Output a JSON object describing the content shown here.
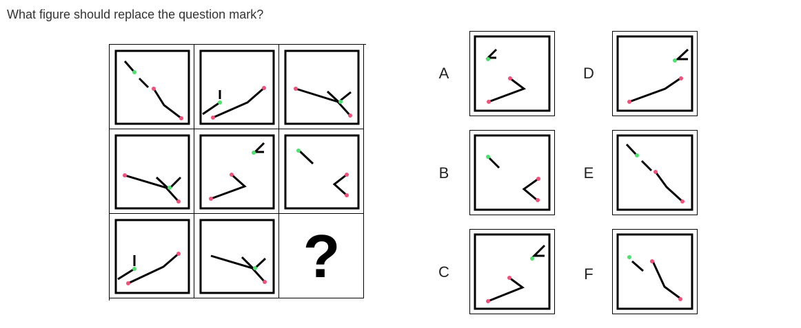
{
  "question": "What figure should replace the question mark?",
  "missing_symbol": "?",
  "colors": {
    "line": "#000000",
    "red_dot": "#f0507a",
    "green_dot": "#50e070"
  },
  "options": [
    {
      "letter": "A"
    },
    {
      "letter": "B"
    },
    {
      "letter": "C"
    },
    {
      "letter": "D"
    },
    {
      "letter": "E"
    },
    {
      "letter": "F"
    }
  ]
}
